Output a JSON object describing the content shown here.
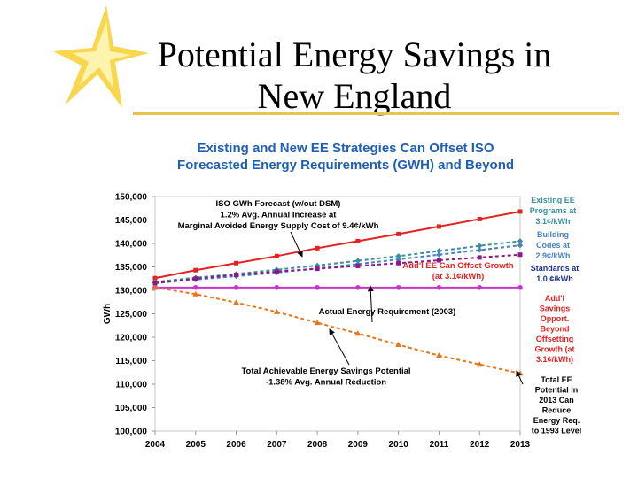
{
  "slide": {
    "title_line1": "Potential Energy Savings in",
    "title_line2": "New England"
  },
  "colors": {
    "accent": "#f0c020",
    "forecast": "#e32222",
    "actual": "#cc33cc",
    "achievable": "#e8751a",
    "existing_ee": "#3a8f9a",
    "codes": "#4a7fc0",
    "addl": "#8a1a8a"
  },
  "chart_data": {
    "type": "line",
    "title": "Existing and New EE Strategies Can Offset ISO Forecasted Energy Requirements (GWH) and Beyond",
    "title_line1": "Existing and New EE Strategies Can Offset ISO",
    "title_line2": "Forecasted Energy Requirements (GWH) and Beyond",
    "xlabel": "",
    "ylabel": "GWh",
    "ylim": [
      100000,
      150000
    ],
    "x": [
      "2004",
      "2005",
      "2006",
      "2007",
      "2008",
      "2009",
      "2010",
      "2011",
      "2012",
      "2013"
    ],
    "yticks": [
      "100,000",
      "105,000",
      "110,000",
      "115,000",
      "120,000",
      "125,000",
      "130,000",
      "135,000",
      "140,000",
      "145,000",
      "150,000"
    ],
    "series": [
      {
        "name": "ISO GWh Forecast",
        "color": "#e32222",
        "dash": false,
        "marker": "square",
        "values": [
          132600,
          134300,
          135800,
          137300,
          139000,
          140500,
          142000,
          143600,
          145200,
          146800
        ]
      },
      {
        "name": "Existing EE Programs",
        "color": "#3a8f9a",
        "dash": true,
        "marker": "diamond",
        "values": [
          131800,
          132700,
          133500,
          134400,
          135300,
          136300,
          137300,
          138400,
          139500,
          140500
        ]
      },
      {
        "name": "Building Codes",
        "color": "#4a7fc0",
        "dash": true,
        "marker": "diamond",
        "values": [
          131600,
          132300,
          133000,
          133800,
          134700,
          135600,
          136600,
          137600,
          138600,
          139600
        ]
      },
      {
        "name": "Addl EE",
        "color": "#8a1a8a",
        "dash": true,
        "marker": "square",
        "values": [
          131500,
          132500,
          133300,
          134000,
          134600,
          135200,
          135800,
          136400,
          137000,
          137600
        ]
      },
      {
        "name": "Actual Energy Requirement (2003)",
        "color": "#cc33cc",
        "dash": false,
        "marker": "circle",
        "values": [
          130600,
          130600,
          130600,
          130600,
          130600,
          130600,
          130600,
          130600,
          130600,
          130600
        ]
      },
      {
        "name": "Total Achievable Energy Savings Potential",
        "color": "#e8751a",
        "dash": true,
        "marker": "triangle",
        "values": [
          130600,
          129200,
          127400,
          125400,
          123100,
          120800,
          118400,
          116100,
          114200,
          112300
        ]
      }
    ],
    "annotations": [
      {
        "id": "forecast",
        "color": "#000000",
        "lines": [
          "ISO GWh Forecast (w/out DSM)",
          "1.2% Avg. Annual Increase at",
          "Marginal Avoided Energy Supply Cost of 9.4¢/kWh"
        ]
      },
      {
        "id": "addl-growth",
        "color": "#e32222",
        "lines": [
          "Add'l EE Can Offset Growth",
          "(at 3.1¢/kWh)"
        ]
      },
      {
        "id": "actual",
        "color": "#000000",
        "lines": [
          "Actual Energy Requirement (2003)"
        ]
      },
      {
        "id": "achievable",
        "color": "#000000",
        "lines": [
          "Total Achievable Energy Savings Potential",
          "-1.38% Avg. Annual Reduction"
        ]
      },
      {
        "id": "side-existing",
        "color": "#3a8f9a",
        "lines": [
          "Existing EE",
          "Programs at",
          "3.1¢/kWh"
        ]
      },
      {
        "id": "side-codes",
        "color": "#4a7fc0",
        "lines": [
          "Building",
          "Codes at",
          "2.9¢/kWh"
        ]
      },
      {
        "id": "side-standards",
        "color": "#1a2f8a",
        "lines": [
          "Standards at",
          "1.0 ¢/kWh"
        ]
      },
      {
        "id": "side-addl",
        "color": "#e32222",
        "lines": [
          "Add'l",
          "Savings",
          "Opport.",
          "Beyond",
          "Offsetting",
          "Growth (at",
          "3.1¢/kWh)"
        ]
      },
      {
        "id": "side-total",
        "color": "#000000",
        "lines": [
          "Total EE",
          "Potential in",
          "2013 Can",
          "Reduce",
          "Energy Req.",
          "to 1993 Level"
        ]
      }
    ],
    "grid": false
  }
}
